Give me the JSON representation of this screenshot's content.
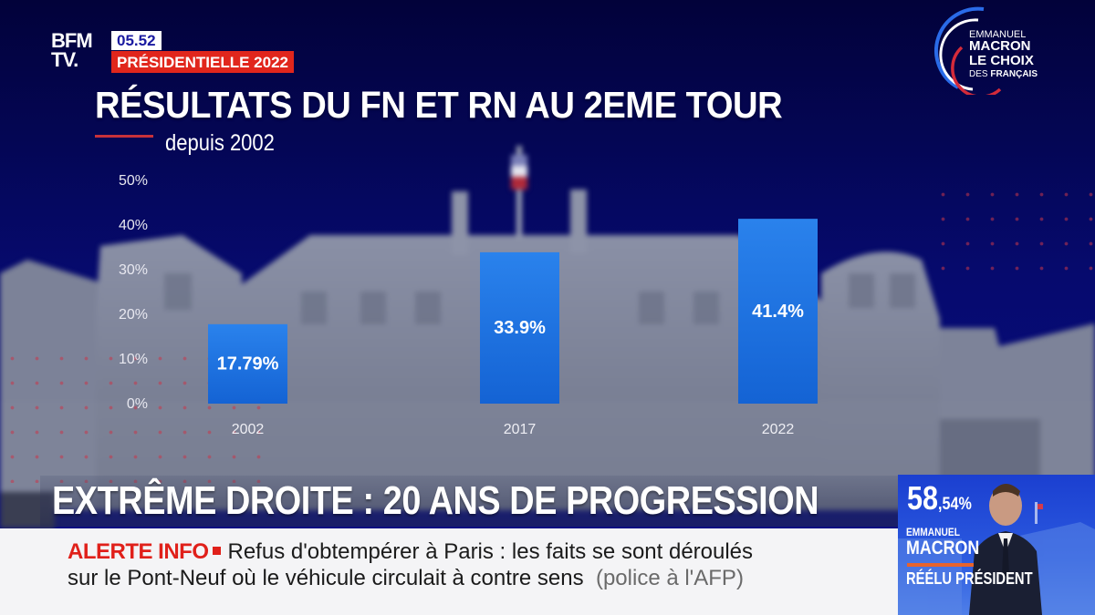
{
  "header": {
    "logo": {
      "line1": "BFM",
      "line2": "TV."
    },
    "clock": "05.52",
    "event_tag": "PRÉSIDENTIELLE 2022",
    "brand_badge": {
      "line1": "EMMANUEL",
      "line2": "MACRON",
      "line3": "LE CHOIX",
      "line4_a": "DES ",
      "line4_b": "FRANÇAIS"
    }
  },
  "chart_data": {
    "type": "bar",
    "title": "RÉSULTATS DU FN ET RN AU 2EME TOUR",
    "subtitle": "depuis 2002",
    "xlabel": "",
    "ylabel": "",
    "categories": [
      "2002",
      "2017",
      "2022"
    ],
    "values": [
      17.79,
      33.9,
      41.4
    ],
    "value_labels": [
      "17.79%",
      "33.9%",
      "41.4%"
    ],
    "ylim": [
      0,
      50
    ],
    "yticks": [
      0,
      10,
      20,
      30,
      40,
      50
    ],
    "ytick_labels": [
      "0%",
      "10%",
      "20%",
      "30%",
      "40%",
      "50%"
    ],
    "grid": false,
    "legend": "none",
    "bar_color": "#1e6fe0"
  },
  "lower_third": {
    "headline": "EXTRÊME DROITE : 20 ANS DE PROGRESSION",
    "alert_label": "ALERTE INFO",
    "alert_line1": "Refus d'obtempérer à Paris : les faits se sont déroulés",
    "alert_line2": "sur le Pont-Neuf où le véhicule circulait à contre sens",
    "alert_source": "(police à l'AFP)"
  },
  "result_insert": {
    "percent_main": "58",
    "percent_decimal": ",54%",
    "first_name": "EMMANUEL",
    "last_name": "MACRON",
    "status": "RÉÉLU PRÉSIDENT"
  },
  "colors": {
    "accent_red": "#e1261c",
    "bar_blue": "#1e6fe0",
    "background_navy": "#03044a"
  }
}
